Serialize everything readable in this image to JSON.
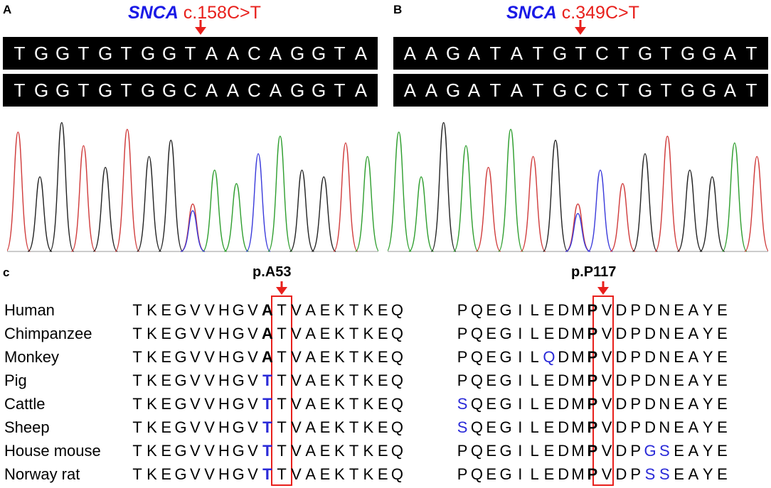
{
  "panelA": {
    "letter": "A",
    "gene": "SNCA",
    "variant": "c.158C>T",
    "seq_top": [
      "T",
      "G",
      "G",
      "T",
      "G",
      "T",
      "G",
      "G",
      "T",
      "A",
      "A",
      "C",
      "A",
      "G",
      "G",
      "T",
      "A"
    ],
    "seq_bottom": [
      "T",
      "G",
      "G",
      "T",
      "G",
      "T",
      "G",
      "G",
      "C",
      "A",
      "A",
      "C",
      "A",
      "G",
      "G",
      "T",
      "A"
    ]
  },
  "panelB": {
    "letter": "B",
    "gene": "SNCA",
    "variant": "c.349C>T",
    "seq_top": [
      "A",
      "A",
      "G",
      "A",
      "T",
      "A",
      "T",
      "G",
      "T",
      "C",
      "T",
      "G",
      "T",
      "G",
      "G",
      "A",
      "T"
    ],
    "seq_bottom": [
      "A",
      "A",
      "G",
      "A",
      "T",
      "A",
      "T",
      "G",
      "C",
      "C",
      "T",
      "G",
      "T",
      "G",
      "G",
      "A",
      "T"
    ]
  },
  "panelC": {
    "letter": "c",
    "mark1": "p.A53",
    "mark2": "p.P117",
    "rows": [
      {
        "species": "Human",
        "left": "TKEGVVHGVATVAEKTKEQ",
        "right": "PQEGILEDMPVDPDNEAYE",
        "lblue": [],
        "rblue": []
      },
      {
        "species": "Chimpanzee",
        "left": "TKEGVVHGVATVAEKTKEQ",
        "right": "PQEGILEDMPVDPDNEAYE",
        "lblue": [],
        "rblue": []
      },
      {
        "species": "Monkey",
        "left": "TKEGVVHGVATVAEKTKEQ",
        "right": "PQEGILQDMPVDPDNEAYE",
        "lblue": [],
        "rblue": [
          6
        ]
      },
      {
        "species": "Pig",
        "left": "TKEGVVHGVTTVAEKTKEQ",
        "right": "PQEGILEDMPVDPDNEAYE",
        "lblue": [
          9
        ],
        "rblue": []
      },
      {
        "species": "Cattle",
        "left": "TKEGVVHGVTTVAEKTKEQ",
        "right": "SQEGILEDMPVDPDNEAYE",
        "lblue": [
          9
        ],
        "rblue": [
          0
        ]
      },
      {
        "species": "Sheep",
        "left": "TKEGVVHGVTTVAEKTKEQ",
        "right": "SQEGILEDMPVDPDNEAYE",
        "lblue": [
          9
        ],
        "rblue": [
          0
        ]
      },
      {
        "species": "House mouse",
        "left": "TKEGVVHGVTTVAEKTKEQ",
        "right": "PQEGILEDMPVDPGSEAYE",
        "lblue": [
          9
        ],
        "rblue": [
          13,
          14
        ]
      },
      {
        "species": "Norway rat",
        "left": "TKEGVVHGVTTVAEKTKEQ",
        "right": "PQEGILEDMPVDPSSEAYE",
        "lblue": [
          9
        ],
        "rblue": [
          13,
          14
        ]
      }
    ]
  },
  "colors": {
    "gene": "#1a1ae6",
    "variant": "#e8201c",
    "box": "#e8201c",
    "substitution": "#2a2ad8"
  }
}
